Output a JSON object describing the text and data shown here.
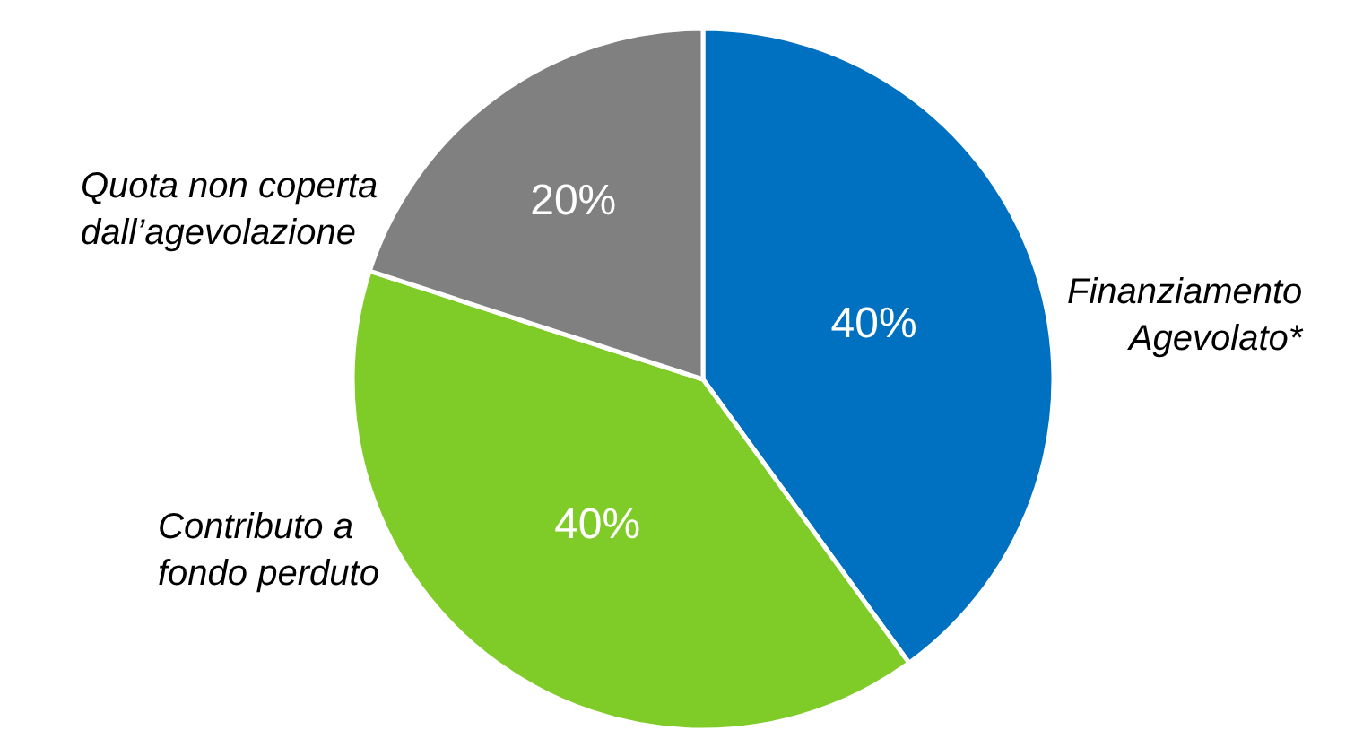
{
  "chart_data": {
    "type": "pie",
    "categories": [
      "Finanziamento Agevolato*",
      "Contributo a fondo perduto",
      "Quota non coperta dall’agevolazione"
    ],
    "values": [
      40,
      40,
      20
    ],
    "colors": [
      "#0070c0",
      "#7fcc28",
      "#808080"
    ],
    "value_labels": [
      "40%",
      "40%",
      "20%"
    ],
    "legend": false
  }
}
